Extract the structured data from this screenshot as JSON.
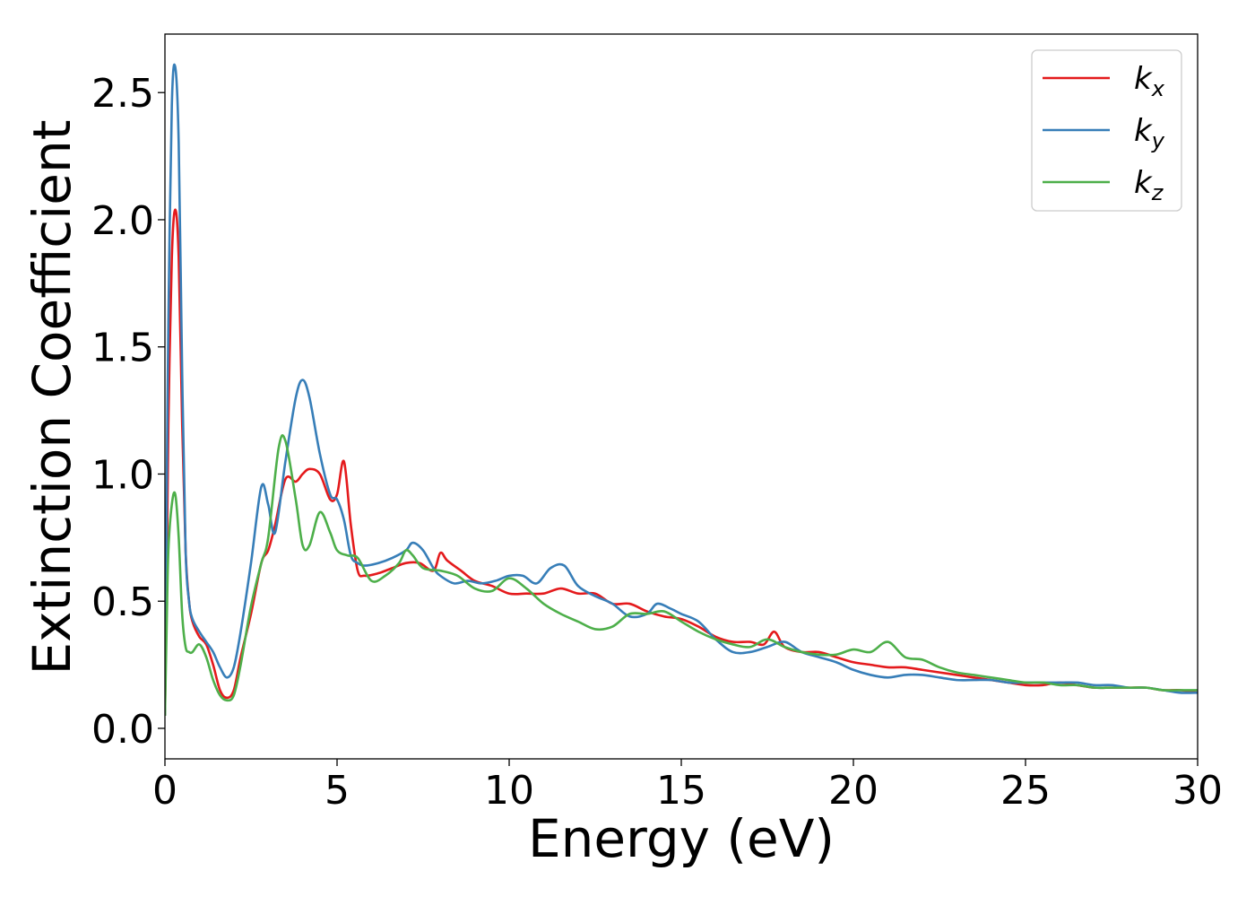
{
  "chart_data": {
    "type": "line",
    "xlabel": "Energy (eV)",
    "ylabel": "Extinction Coefficient",
    "xlim": [
      0,
      30
    ],
    "ylim": [
      -0.12,
      2.73
    ],
    "xticks": [
      0,
      5,
      10,
      15,
      20,
      25,
      30
    ],
    "xtick_labels": [
      "0",
      "5",
      "10",
      "15",
      "20",
      "25",
      "30"
    ],
    "yticks": [
      0.0,
      0.5,
      1.0,
      1.5,
      2.0,
      2.5
    ],
    "ytick_labels": [
      "0.0",
      "0.5",
      "1.0",
      "1.5",
      "2.0",
      "2.5"
    ],
    "grid": false,
    "legend_position": "top-right",
    "series": [
      {
        "name": "k_x",
        "label_main": "k",
        "label_sub": "x",
        "color": "#e41a1c",
        "x": [
          0,
          0.05,
          0.1,
          0.2,
          0.3,
          0.4,
          0.5,
          0.6,
          0.7,
          0.8,
          1.0,
          1.2,
          1.4,
          1.6,
          1.8,
          2.0,
          2.2,
          2.5,
          2.8,
          3.0,
          3.2,
          3.5,
          3.8,
          4.0,
          4.2,
          4.5,
          4.8,
          5.0,
          5.2,
          5.4,
          5.6,
          5.8,
          6.2,
          6.6,
          7.0,
          7.4,
          7.8,
          8.0,
          8.2,
          8.6,
          9.0,
          9.5,
          10.0,
          10.5,
          11.0,
          11.5,
          12.0,
          12.5,
          13.0,
          13.5,
          14.0,
          14.5,
          15.0,
          15.5,
          16.0,
          16.5,
          17.0,
          17.4,
          17.7,
          18.0,
          18.5,
          19.0,
          19.5,
          20.0,
          20.5,
          21.0,
          21.5,
          22.0,
          22.5,
          23.0,
          23.5,
          24.0,
          24.5,
          25.0,
          25.5,
          26.0,
          26.5,
          27.0,
          27.5,
          28.0,
          28.5,
          29.0,
          29.5,
          30.0
        ],
        "y": [
          0.05,
          0.6,
          1.2,
          1.85,
          2.04,
          1.85,
          1.2,
          0.7,
          0.5,
          0.42,
          0.36,
          0.33,
          0.25,
          0.15,
          0.12,
          0.15,
          0.28,
          0.45,
          0.65,
          0.7,
          0.8,
          0.98,
          0.97,
          1.0,
          1.02,
          1.0,
          0.9,
          0.92,
          1.05,
          0.8,
          0.62,
          0.6,
          0.61,
          0.63,
          0.65,
          0.65,
          0.62,
          0.69,
          0.66,
          0.62,
          0.58,
          0.56,
          0.53,
          0.53,
          0.53,
          0.55,
          0.53,
          0.53,
          0.49,
          0.49,
          0.46,
          0.44,
          0.43,
          0.4,
          0.36,
          0.34,
          0.34,
          0.33,
          0.38,
          0.32,
          0.3,
          0.3,
          0.28,
          0.26,
          0.25,
          0.24,
          0.24,
          0.23,
          0.22,
          0.21,
          0.2,
          0.19,
          0.18,
          0.17,
          0.17,
          0.18,
          0.17,
          0.16,
          0.16,
          0.16,
          0.16,
          0.15,
          0.15,
          0.14
        ]
      },
      {
        "name": "k_y",
        "label_main": "k",
        "label_sub": "y",
        "color": "#377eb8",
        "x": [
          0,
          0.05,
          0.1,
          0.2,
          0.3,
          0.4,
          0.5,
          0.6,
          0.7,
          0.8,
          1.0,
          1.2,
          1.4,
          1.6,
          1.8,
          2.0,
          2.2,
          2.5,
          2.8,
          3.0,
          3.2,
          3.5,
          3.8,
          4.0,
          4.2,
          4.5,
          4.8,
          5.0,
          5.2,
          5.4,
          5.6,
          5.8,
          6.2,
          6.6,
          7.0,
          7.2,
          7.5,
          7.8,
          8.0,
          8.4,
          8.8,
          9.2,
          9.6,
          10.0,
          10.4,
          10.8,
          11.2,
          11.6,
          12.0,
          12.5,
          13.0,
          13.5,
          14.0,
          14.3,
          14.7,
          15.0,
          15.5,
          16.0,
          16.5,
          17.0,
          17.5,
          18.0,
          18.5,
          19.0,
          19.5,
          20.0,
          20.5,
          21.0,
          21.5,
          22.0,
          22.5,
          23.0,
          23.5,
          24.0,
          24.5,
          25.0,
          25.5,
          26.0,
          26.5,
          27.0,
          27.5,
          28.0,
          28.5,
          29.0,
          29.5,
          30.0
        ],
        "y": [
          0.05,
          0.9,
          1.6,
          2.45,
          2.6,
          2.3,
          1.4,
          0.7,
          0.5,
          0.43,
          0.38,
          0.34,
          0.3,
          0.24,
          0.2,
          0.24,
          0.38,
          0.65,
          0.95,
          0.88,
          0.77,
          1.05,
          1.3,
          1.37,
          1.3,
          1.08,
          0.92,
          0.9,
          0.82,
          0.68,
          0.65,
          0.64,
          0.65,
          0.67,
          0.7,
          0.73,
          0.7,
          0.63,
          0.6,
          0.57,
          0.58,
          0.57,
          0.58,
          0.6,
          0.6,
          0.57,
          0.63,
          0.64,
          0.56,
          0.52,
          0.49,
          0.44,
          0.45,
          0.49,
          0.47,
          0.45,
          0.42,
          0.35,
          0.3,
          0.3,
          0.32,
          0.34,
          0.3,
          0.28,
          0.26,
          0.23,
          0.21,
          0.2,
          0.21,
          0.21,
          0.2,
          0.19,
          0.19,
          0.19,
          0.18,
          0.18,
          0.18,
          0.18,
          0.18,
          0.17,
          0.17,
          0.16,
          0.16,
          0.15,
          0.14,
          0.14
        ]
      },
      {
        "name": "k_z",
        "label_main": "k",
        "label_sub": "z",
        "color": "#4daf4a",
        "x": [
          0,
          0.05,
          0.1,
          0.2,
          0.3,
          0.4,
          0.5,
          0.6,
          0.7,
          0.8,
          1.0,
          1.2,
          1.4,
          1.6,
          1.8,
          2.0,
          2.2,
          2.5,
          2.8,
          3.0,
          3.3,
          3.5,
          3.8,
          4.0,
          4.2,
          4.5,
          4.8,
          5.0,
          5.3,
          5.6,
          6.0,
          6.4,
          6.8,
          7.0,
          7.2,
          7.5,
          8.0,
          8.5,
          9.0,
          9.5,
          10.0,
          10.5,
          11.0,
          11.5,
          12.0,
          12.5,
          13.0,
          13.5,
          14.0,
          14.5,
          15.0,
          15.5,
          16.0,
          16.5,
          17.0,
          17.5,
          18.0,
          18.5,
          19.0,
          19.5,
          20.0,
          20.5,
          21.0,
          21.5,
          22.0,
          22.5,
          23.0,
          23.5,
          24.0,
          24.5,
          25.0,
          25.5,
          26.0,
          26.5,
          27.0,
          27.5,
          28.0,
          28.5,
          29.0,
          29.5,
          30.0
        ],
        "y": [
          0.05,
          0.4,
          0.7,
          0.88,
          0.92,
          0.75,
          0.45,
          0.32,
          0.3,
          0.3,
          0.33,
          0.28,
          0.19,
          0.13,
          0.11,
          0.13,
          0.25,
          0.48,
          0.65,
          0.75,
          1.1,
          1.13,
          0.9,
          0.72,
          0.72,
          0.85,
          0.77,
          0.7,
          0.68,
          0.67,
          0.58,
          0.6,
          0.65,
          0.7,
          0.68,
          0.63,
          0.62,
          0.6,
          0.55,
          0.54,
          0.59,
          0.55,
          0.49,
          0.45,
          0.42,
          0.39,
          0.4,
          0.45,
          0.45,
          0.46,
          0.42,
          0.38,
          0.35,
          0.33,
          0.32,
          0.35,
          0.32,
          0.3,
          0.29,
          0.29,
          0.31,
          0.3,
          0.34,
          0.28,
          0.27,
          0.24,
          0.22,
          0.21,
          0.2,
          0.19,
          0.18,
          0.18,
          0.17,
          0.17,
          0.16,
          0.16,
          0.16,
          0.16,
          0.15,
          0.15,
          0.15
        ]
      }
    ]
  }
}
